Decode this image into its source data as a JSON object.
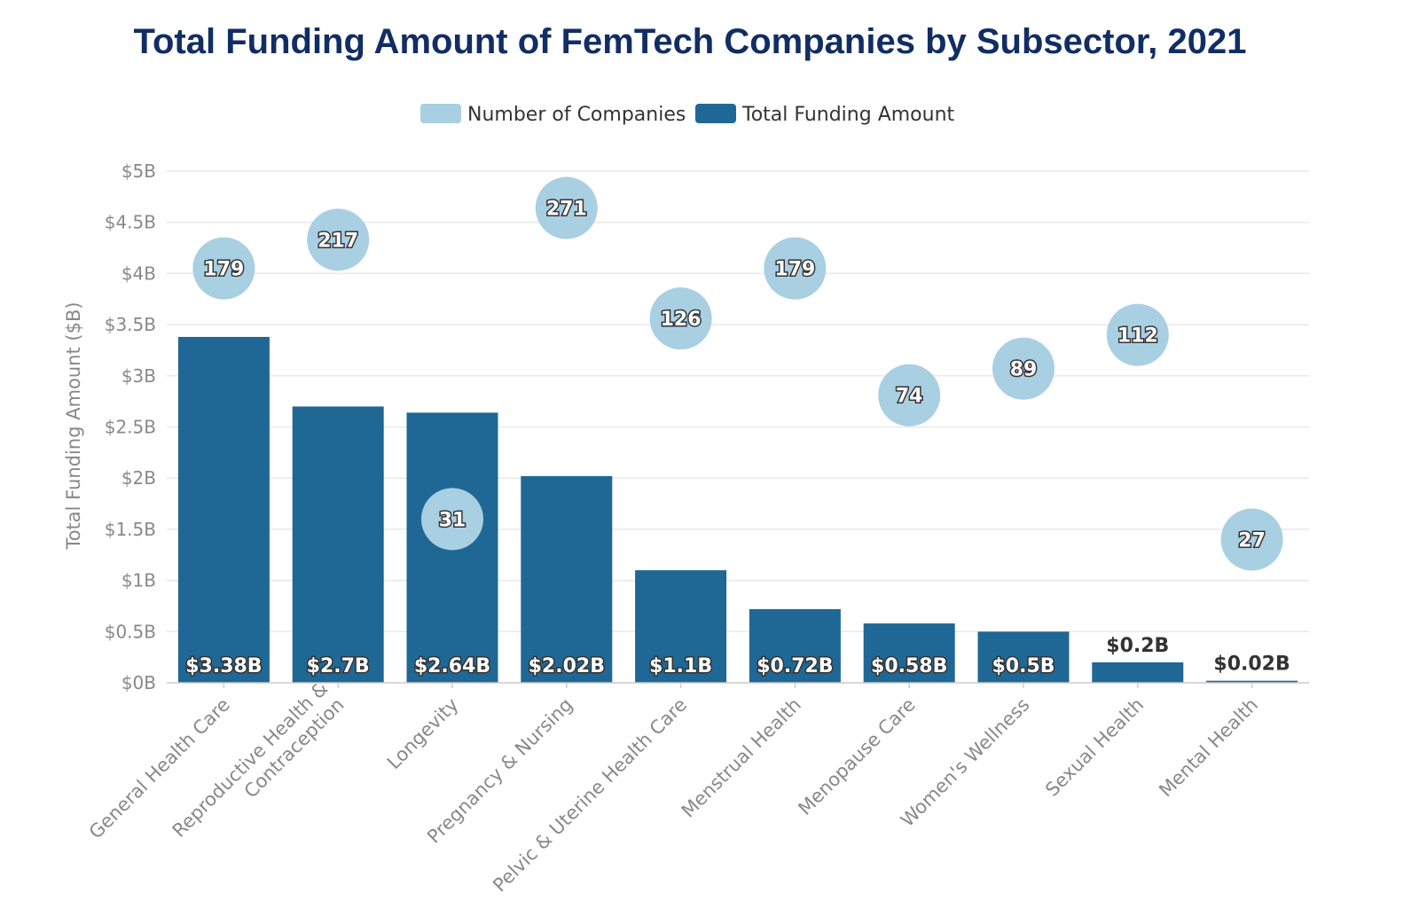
{
  "chart_data": {
    "type": "bar",
    "title": "Total Funding Amount of FemTech Companies by Subsector, 2021",
    "ylabel": "Total Funding Amount ($B)",
    "xlabel": "",
    "ylim": [
      0,
      5
    ],
    "yticks": [
      {
        "value": 0,
        "label": "$0B"
      },
      {
        "value": 0.5,
        "label": "$0.5B"
      },
      {
        "value": 1,
        "label": "$1B"
      },
      {
        "value": 1.5,
        "label": "$1.5B"
      },
      {
        "value": 2,
        "label": "$2B"
      },
      {
        "value": 2.5,
        "label": "$2.5B"
      },
      {
        "value": 3,
        "label": "$3B"
      },
      {
        "value": 3.5,
        "label": "$3.5B"
      },
      {
        "value": 4,
        "label": "$4B"
      },
      {
        "value": 4.5,
        "label": "$4.5B"
      },
      {
        "value": 5,
        "label": "$5B"
      }
    ],
    "grid": true,
    "legend_position": "top-center",
    "categories": [
      [
        "General Health Care"
      ],
      [
        "Reproductive Health &",
        "Contraception"
      ],
      [
        "Longevity"
      ],
      [
        "Pregnancy & Nursing"
      ],
      [
        "Pelvic & Uterine Health Care"
      ],
      [
        "Menstrual Health"
      ],
      [
        "Menopause Care"
      ],
      [
        "Women's Wellness"
      ],
      [
        "Sexual Health"
      ],
      [
        "Mental Health"
      ]
    ],
    "series": [
      {
        "name": "Number of Companies",
        "type": "scatter",
        "color": "#a9cfe3",
        "values": [
          179,
          217,
          31,
          271,
          126,
          179,
          74,
          89,
          112,
          27
        ],
        "plotted_at": [
          4.05,
          4.33,
          1.6,
          4.64,
          3.56,
          4.05,
          2.81,
          3.07,
          3.4,
          1.4
        ],
        "labels": [
          "179",
          "217",
          "31",
          "271",
          "126",
          "179",
          "74",
          "89",
          "112",
          "27"
        ]
      },
      {
        "name": "Total Funding Amount",
        "type": "bar",
        "color": "#1f6895",
        "values": [
          3.38,
          2.7,
          2.64,
          2.02,
          1.1,
          0.72,
          0.58,
          0.5,
          0.2,
          0.02
        ],
        "labels": [
          "$3.38B",
          "$2.7B",
          "$2.64B",
          "$2.02B",
          "$1.1B",
          "$0.72B",
          "$0.58B",
          "$0.5B",
          "$0.2B",
          "$0.02B"
        ]
      }
    ]
  }
}
